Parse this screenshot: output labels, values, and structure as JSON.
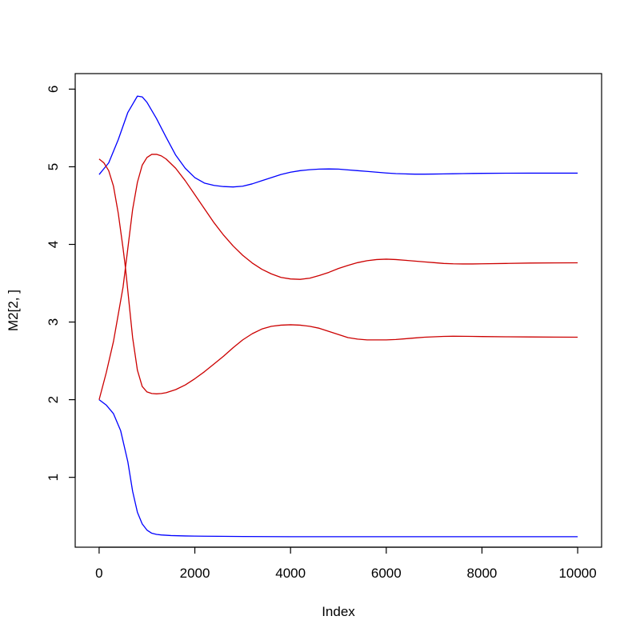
{
  "chart_data": {
    "type": "line",
    "xlabel": "Index",
    "ylabel": "M2[2, ]",
    "xlim": [
      -500,
      10500
    ],
    "ylim": [
      0.1,
      6.2
    ],
    "x_ticks": [
      "0",
      "2000",
      "4000",
      "6000",
      "8000",
      "10000"
    ],
    "y_ticks": [
      "1",
      "2",
      "3",
      "4",
      "5",
      "6"
    ],
    "grid": false,
    "legend": "none",
    "series": [
      {
        "color": "#0000ff",
        "x": [
          0,
          200,
          400,
          600,
          800,
          900,
          1000,
          1200,
          1400,
          1600,
          1800,
          2000,
          2200,
          2400,
          2600,
          2800,
          3000,
          3200,
          3400,
          3600,
          3800,
          4000,
          4200,
          4400,
          4600,
          4800,
          5000,
          5200,
          5400,
          5600,
          5800,
          6000,
          6200,
          6400,
          6600,
          6800,
          7000,
          7200,
          7400,
          7600,
          7800,
          8000,
          8500,
          9000,
          9500,
          10000
        ],
        "y": [
          4.9,
          5.05,
          5.35,
          5.7,
          5.91,
          5.9,
          5.83,
          5.62,
          5.38,
          5.15,
          4.98,
          4.86,
          4.79,
          4.76,
          4.745,
          4.74,
          4.75,
          4.78,
          4.82,
          4.86,
          4.9,
          4.93,
          4.95,
          4.962,
          4.97,
          4.972,
          4.97,
          4.96,
          4.95,
          4.94,
          4.93,
          4.92,
          4.912,
          4.908,
          4.905,
          4.905,
          4.906,
          4.908,
          4.91,
          4.912,
          4.914,
          4.915,
          4.917,
          4.918,
          4.918,
          4.918
        ]
      },
      {
        "color": "#0000ff",
        "x": [
          0,
          150,
          300,
          450,
          600,
          700,
          800,
          900,
          1000,
          1100,
          1200,
          1300,
          1500,
          1800,
          2000,
          2500,
          3000,
          4000,
          5000,
          6000,
          7000,
          8000,
          9000,
          10000
        ],
        "y": [
          2.0,
          1.93,
          1.82,
          1.6,
          1.2,
          0.82,
          0.55,
          0.4,
          0.32,
          0.28,
          0.265,
          0.258,
          0.25,
          0.245,
          0.243,
          0.24,
          0.238,
          0.235,
          0.235,
          0.235,
          0.235,
          0.235,
          0.235,
          0.235
        ]
      },
      {
        "color": "#cc0000",
        "x": [
          0,
          150,
          300,
          400,
          500,
          600,
          700,
          800,
          900,
          1000,
          1100,
          1200,
          1300,
          1400,
          1600,
          1800,
          2000,
          2200,
          2400,
          2600,
          2800,
          3000,
          3200,
          3400,
          3600,
          3800,
          4000,
          4200,
          4400,
          4600,
          4800,
          5000,
          5200,
          5400,
          5600,
          5800,
          6000,
          6200,
          6400,
          6600,
          6800,
          7000,
          7200,
          7400,
          7600,
          7800,
          8000,
          8500,
          9000,
          9500,
          10000
        ],
        "y": [
          2.0,
          2.35,
          2.75,
          3.1,
          3.45,
          3.95,
          4.45,
          4.8,
          5.02,
          5.12,
          5.16,
          5.16,
          5.14,
          5.1,
          4.98,
          4.82,
          4.64,
          4.46,
          4.28,
          4.12,
          3.98,
          3.86,
          3.76,
          3.68,
          3.62,
          3.575,
          3.555,
          3.55,
          3.565,
          3.6,
          3.64,
          3.69,
          3.73,
          3.765,
          3.79,
          3.805,
          3.81,
          3.805,
          3.795,
          3.785,
          3.775,
          3.765,
          3.755,
          3.75,
          3.748,
          3.748,
          3.75,
          3.755,
          3.76,
          3.762,
          3.763
        ]
      },
      {
        "color": "#cc0000",
        "x": [
          0,
          100,
          200,
          300,
          400,
          500,
          550,
          600,
          700,
          800,
          900,
          1000,
          1100,
          1200,
          1300,
          1400,
          1600,
          1800,
          2000,
          2200,
          2400,
          2600,
          2800,
          3000,
          3200,
          3400,
          3600,
          3800,
          4000,
          4200,
          4400,
          4600,
          4800,
          5000,
          5200,
          5400,
          5600,
          5800,
          6000,
          6200,
          6400,
          6600,
          6800,
          7000,
          7200,
          7400,
          7600,
          7800,
          8000,
          8500,
          9000,
          9500,
          10000
        ],
        "y": [
          5.1,
          5.05,
          4.95,
          4.75,
          4.4,
          3.95,
          3.7,
          3.4,
          2.8,
          2.38,
          2.17,
          2.1,
          2.08,
          2.075,
          2.08,
          2.09,
          2.13,
          2.19,
          2.27,
          2.36,
          2.46,
          2.56,
          2.67,
          2.77,
          2.85,
          2.91,
          2.945,
          2.96,
          2.965,
          2.96,
          2.945,
          2.92,
          2.88,
          2.84,
          2.8,
          2.78,
          2.77,
          2.77,
          2.77,
          2.775,
          2.785,
          2.795,
          2.805,
          2.81,
          2.815,
          2.817,
          2.816,
          2.815,
          2.813,
          2.81,
          2.808,
          2.806,
          2.805
        ]
      }
    ]
  }
}
